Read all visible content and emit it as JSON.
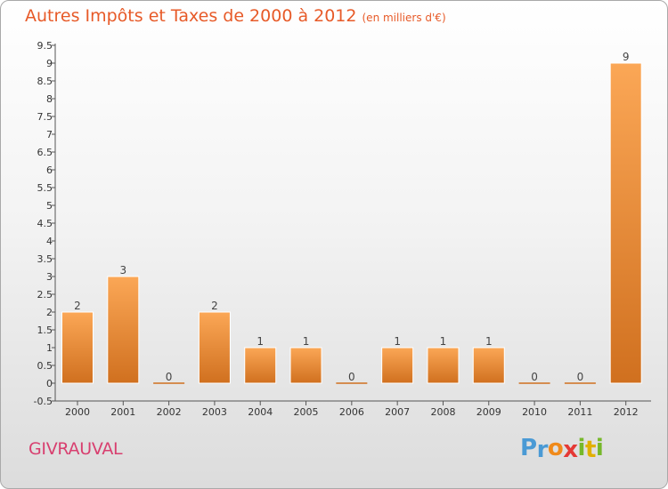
{
  "header": {
    "title": "Autres Impôts et Taxes de 2000 à 2012",
    "unit": "(en milliers d'€)"
  },
  "footer": {
    "commune": "GIVRAUVAL",
    "logo": [
      "P",
      "r",
      "o",
      "x",
      "i",
      "t",
      "i"
    ]
  },
  "colors": {
    "title": "#e75a28",
    "commune": "#d83f6f",
    "bar_top": "#fba756",
    "bar_bottom": "#d0701f",
    "logo": [
      "#4a9ad5",
      "#4a9ad5",
      "#f08a1a",
      "#e53935",
      "#76b82a",
      "#e0b000",
      "#76b82a"
    ]
  },
  "chart_data": {
    "type": "bar",
    "title": "Autres Impôts et Taxes de 2000 à 2012",
    "subtitle": "(en milliers d'€)",
    "xlabel": "",
    "ylabel": "",
    "categories": [
      "2000",
      "2001",
      "2002",
      "2003",
      "2004",
      "2005",
      "2006",
      "2007",
      "2008",
      "2009",
      "2010",
      "2011",
      "2012"
    ],
    "values": [
      2,
      3,
      0,
      2,
      1,
      1,
      0,
      1,
      1,
      1,
      0,
      0,
      9
    ],
    "data_labels": [
      "2",
      "3",
      "0",
      "2",
      "1",
      "1",
      "0",
      "1",
      "1",
      "1",
      "0",
      "0",
      "9"
    ],
    "ylim": [
      -0.5,
      9.5
    ],
    "yticks": [
      "-0.5",
      "0",
      "0.5",
      "1",
      "1.5",
      "2",
      "2.5",
      "3",
      "3.5",
      "4",
      "4.5",
      "5",
      "5.5",
      "6",
      "6.5",
      "7",
      "7.5",
      "8",
      "8.5",
      "9",
      "9.5"
    ],
    "grid": false,
    "legend": "none"
  }
}
